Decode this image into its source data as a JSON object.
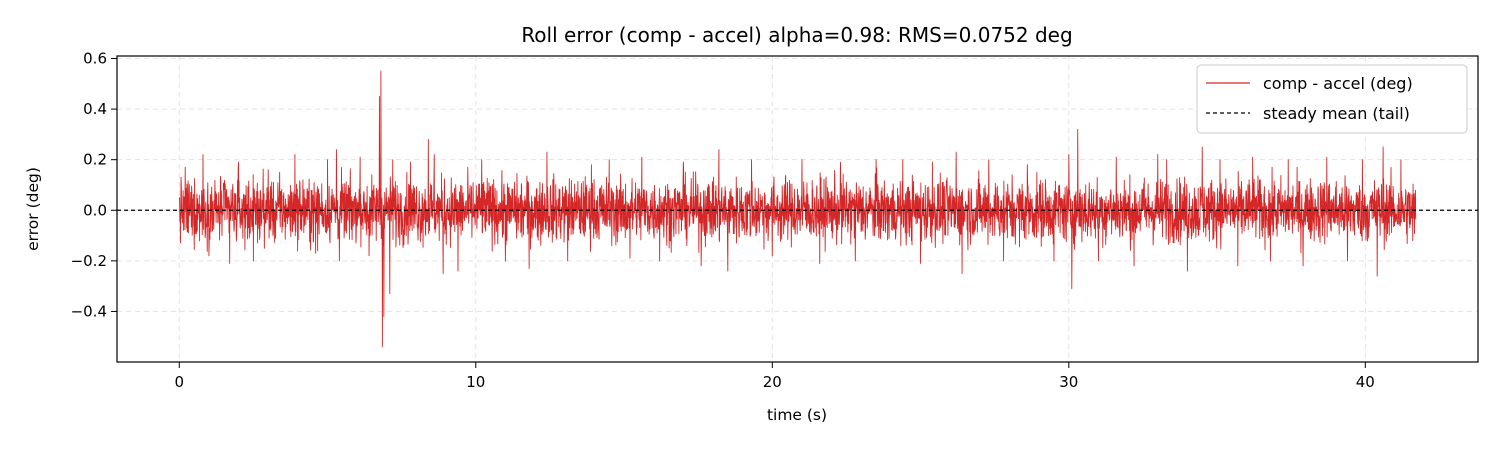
{
  "chart_data": {
    "type": "line",
    "title": "Roll error (comp - accel) alpha=0.98: RMS=0.0752 deg",
    "xlabel": "time (s)",
    "ylabel": "error (deg)",
    "xlim": [
      -2.1,
      43.8
    ],
    "ylim": [
      -0.6,
      0.61
    ],
    "xticks": [
      0,
      10,
      20,
      30,
      40
    ],
    "xtick_labels": [
      "0",
      "10",
      "20",
      "30",
      "40"
    ],
    "yticks": [
      -0.4,
      -0.2,
      0.0,
      0.2,
      0.4,
      0.6
    ],
    "ytick_labels": [
      "−0.4",
      "−0.2",
      "0.0",
      "0.2",
      "0.4",
      "0.6"
    ],
    "grid": true,
    "legend_position": "upper right",
    "series": [
      {
        "name": "comp - accel (deg)",
        "color": "#d62728",
        "style": "solid",
        "x_range": [
          0,
          41.7
        ],
        "summary": "dense noise around 0 with amplitude about ±0.12 deg, spike near t=6.8 s",
        "peaks": [
          {
            "x": 0.2,
            "y": 0.17
          },
          {
            "x": 0.8,
            "y": 0.22
          },
          {
            "x": 1.0,
            "y": -0.18
          },
          {
            "x": 1.7,
            "y": -0.21
          },
          {
            "x": 2.0,
            "y": 0.19
          },
          {
            "x": 2.5,
            "y": -0.2
          },
          {
            "x": 3.0,
            "y": 0.16
          },
          {
            "x": 3.9,
            "y": 0.22
          },
          {
            "x": 4.6,
            "y": -0.17
          },
          {
            "x": 5.0,
            "y": 0.2
          },
          {
            "x": 5.4,
            "y": -0.2
          },
          {
            "x": 5.3,
            "y": 0.24
          },
          {
            "x": 6.1,
            "y": 0.21
          },
          {
            "x": 6.4,
            "y": -0.18
          },
          {
            "x": 6.75,
            "y": 0.45
          },
          {
            "x": 6.8,
            "y": 0.55
          },
          {
            "x": 6.85,
            "y": -0.54
          },
          {
            "x": 6.9,
            "y": -0.42
          },
          {
            "x": 7.1,
            "y": -0.33
          },
          {
            "x": 7.2,
            "y": 0.2
          },
          {
            "x": 7.8,
            "y": 0.19
          },
          {
            "x": 8.4,
            "y": 0.28
          },
          {
            "x": 8.9,
            "y": -0.25
          },
          {
            "x": 8.6,
            "y": 0.22
          },
          {
            "x": 9.4,
            "y": -0.24
          },
          {
            "x": 10.2,
            "y": 0.2
          },
          {
            "x": 11.0,
            "y": -0.2
          },
          {
            "x": 11.8,
            "y": -0.23
          },
          {
            "x": 12.4,
            "y": 0.23
          },
          {
            "x": 13.1,
            "y": -0.2
          },
          {
            "x": 13.9,
            "y": 0.18
          },
          {
            "x": 14.5,
            "y": 0.2
          },
          {
            "x": 15.2,
            "y": -0.19
          },
          {
            "x": 15.6,
            "y": 0.21
          },
          {
            "x": 16.2,
            "y": -0.2
          },
          {
            "x": 17.0,
            "y": 0.19
          },
          {
            "x": 17.6,
            "y": -0.22
          },
          {
            "x": 18.2,
            "y": 0.24
          },
          {
            "x": 18.5,
            "y": -0.24
          },
          {
            "x": 19.3,
            "y": 0.2
          },
          {
            "x": 20.0,
            "y": -0.18
          },
          {
            "x": 21.0,
            "y": 0.2
          },
          {
            "x": 21.6,
            "y": -0.21
          },
          {
            "x": 22.3,
            "y": 0.19
          },
          {
            "x": 22.8,
            "y": -0.2
          },
          {
            "x": 23.5,
            "y": 0.2
          },
          {
            "x": 24.4,
            "y": 0.2
          },
          {
            "x": 25.0,
            "y": -0.21
          },
          {
            "x": 25.4,
            "y": 0.19
          },
          {
            "x": 26.2,
            "y": 0.23
          },
          {
            "x": 26.4,
            "y": -0.25
          },
          {
            "x": 27.3,
            "y": 0.2
          },
          {
            "x": 27.8,
            "y": -0.2
          },
          {
            "x": 28.6,
            "y": 0.18
          },
          {
            "x": 29.5,
            "y": -0.2
          },
          {
            "x": 30.0,
            "y": 0.22
          },
          {
            "x": 30.1,
            "y": -0.31
          },
          {
            "x": 30.3,
            "y": 0.2
          },
          {
            "x": 30.3,
            "y": 0.32
          },
          {
            "x": 31.0,
            "y": -0.2
          },
          {
            "x": 31.6,
            "y": 0.21
          },
          {
            "x": 32.2,
            "y": -0.22
          },
          {
            "x": 33.0,
            "y": 0.22
          },
          {
            "x": 33.3,
            "y": 0.2
          },
          {
            "x": 34.0,
            "y": -0.24
          },
          {
            "x": 34.5,
            "y": 0.25
          },
          {
            "x": 35.1,
            "y": 0.2
          },
          {
            "x": 35.7,
            "y": -0.22
          },
          {
            "x": 36.2,
            "y": 0.21
          },
          {
            "x": 36.8,
            "y": -0.2
          },
          {
            "x": 37.4,
            "y": 0.2
          },
          {
            "x": 37.9,
            "y": -0.22
          },
          {
            "x": 38.7,
            "y": 0.21
          },
          {
            "x": 39.4,
            "y": -0.2
          },
          {
            "x": 39.9,
            "y": 0.2
          },
          {
            "x": 40.4,
            "y": -0.26
          },
          {
            "x": 40.6,
            "y": 0.25
          },
          {
            "x": 41.2,
            "y": 0.2
          },
          {
            "x": 41.6,
            "y": -0.12
          }
        ]
      },
      {
        "name": "steady mean (tail)",
        "color": "#000000",
        "style": "dashed",
        "y": 0.0
      }
    ]
  }
}
